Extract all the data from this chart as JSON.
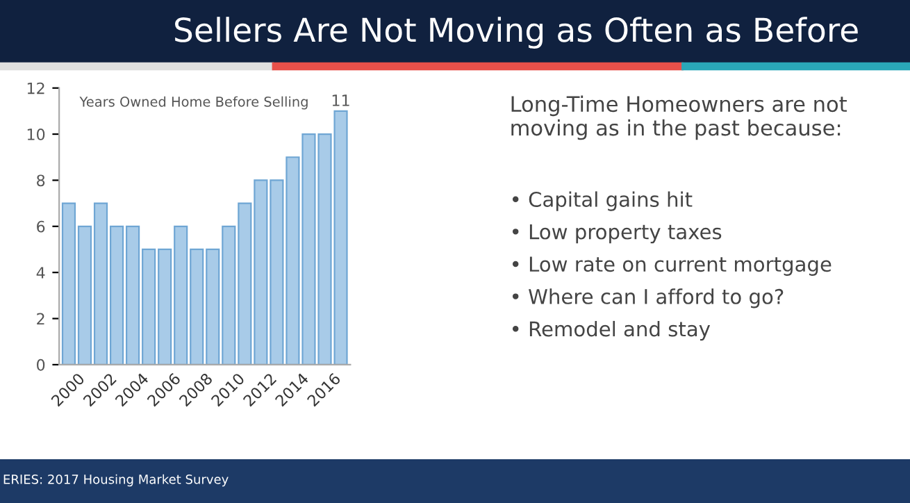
{
  "chart_data": [
    {
      "type": "bar",
      "title": "Sellers Are Not Moving as Often as Before",
      "subtitle": "Years Owned Home Before Selling",
      "categories": [
        "2000",
        null,
        "2002",
        null,
        "2004",
        null,
        "2006",
        null,
        "2008",
        null,
        "2010",
        null,
        "2012",
        null,
        "2014",
        null,
        "2016",
        null
      ],
      "values": [
        7,
        6,
        7,
        6,
        6,
        5,
        5,
        6,
        5,
        5,
        6,
        7,
        8,
        8,
        9,
        10,
        10,
        11
      ],
      "value_labels": [
        null,
        null,
        null,
        null,
        null,
        null,
        null,
        null,
        null,
        null,
        null,
        null,
        null,
        null,
        null,
        null,
        null,
        "11"
      ],
      "color": "#a8cbe8",
      "ylim": [
        0,
        12
      ],
      "yticks": [
        0,
        2,
        4,
        6,
        8,
        10,
        12
      ],
      "grid": false,
      "annotations": [
        "ERIES: 2017 Housing Market Survey"
      ]
    },
    {
      "type": "other",
      "annotations": [
        "Long-Time Homeowners are not moving as in the past because:",
        "• Capital gains hit",
        "• Low property taxes",
        "• Low rate on current mortgage",
        "• Where can I afford to go?",
        "• Remodel and stay"
      ]
    }
  ]
}
